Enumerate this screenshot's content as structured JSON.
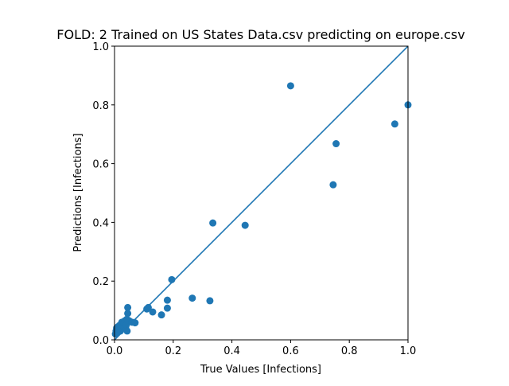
{
  "chart_data": {
    "type": "scatter",
    "title": "FOLD: 2 Trained on US States Data.csv predicting on europe.csv",
    "xlabel": "True Values [Infections]",
    "ylabel": "Predictions [Infections]",
    "xlim": [
      0,
      1
    ],
    "ylim": [
      0,
      1
    ],
    "xticks": [
      "0.0",
      "0.2",
      "0.4",
      "0.6",
      "0.8",
      "1.0"
    ],
    "yticks": [
      "0.0",
      "0.2",
      "0.4",
      "0.6",
      "0.8",
      "1.0"
    ],
    "grid": false,
    "reference_line": {
      "x": [
        0,
        1
      ],
      "y": [
        0,
        1
      ]
    },
    "series": [
      {
        "color": "#1f77b4",
        "points": [
          [
            0.003,
            0.02
          ],
          [
            0.005,
            0.03
          ],
          [
            0.007,
            0.04
          ],
          [
            0.01,
            0.025
          ],
          [
            0.012,
            0.045
          ],
          [
            0.015,
            0.035
          ],
          [
            0.018,
            0.05
          ],
          [
            0.02,
            0.03
          ],
          [
            0.022,
            0.04
          ],
          [
            0.025,
            0.06
          ],
          [
            0.03,
            0.045
          ],
          [
            0.033,
            0.055
          ],
          [
            0.035,
            0.065
          ],
          [
            0.038,
            0.04
          ],
          [
            0.04,
            0.05
          ],
          [
            0.042,
            0.07
          ],
          [
            0.043,
            0.03
          ],
          [
            0.045,
            0.09
          ],
          [
            0.045,
            0.11
          ],
          [
            0.05,
            0.065
          ],
          [
            0.06,
            0.06
          ],
          [
            0.07,
            0.058
          ],
          [
            0.11,
            0.105
          ],
          [
            0.115,
            0.11
          ],
          [
            0.13,
            0.095
          ],
          [
            0.16,
            0.085
          ],
          [
            0.18,
            0.135
          ],
          [
            0.18,
            0.108
          ],
          [
            0.195,
            0.205
          ],
          [
            0.265,
            0.142
          ],
          [
            0.325,
            0.133
          ],
          [
            0.335,
            0.398
          ],
          [
            0.445,
            0.39
          ],
          [
            0.6,
            0.865
          ],
          [
            0.745,
            0.528
          ],
          [
            0.755,
            0.668
          ],
          [
            0.955,
            0.735
          ],
          [
            1.0,
            0.8
          ]
        ]
      }
    ]
  }
}
